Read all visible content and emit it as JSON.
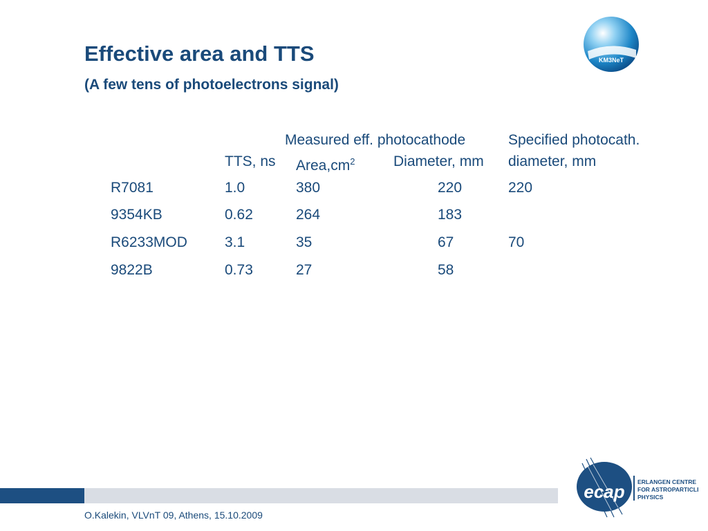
{
  "slide": {
    "title": "Effective area and TTS",
    "subtitle": "(A few tens of photoelectrons signal)"
  },
  "table": {
    "group_header_measured": "Measured eff. photocathode",
    "group_header_specified": "Specified photocath.",
    "col_tts": "TTS, ns",
    "col_area": "Area,cm",
    "col_area_sup": "2",
    "col_diameter": "Diameter, mm",
    "col_spec_diameter": "diameter, mm",
    "rows": [
      {
        "name": "R7081",
        "tts": "1.0",
        "area": "380",
        "diameter": "220",
        "spec": "220"
      },
      {
        "name": "9354KB",
        "tts": "0.62",
        "area": "264",
        "diameter": "183",
        "spec": ""
      },
      {
        "name": "R6233MOD",
        "tts": "3.1",
        "area": "35",
        "diameter": "67",
        "spec": "70"
      },
      {
        "name": "9822B",
        "tts": "0.73",
        "area": "27",
        "diameter": "58",
        "spec": ""
      }
    ]
  },
  "footer": {
    "text": "O.Kalekin, VLVnT 09, Athens, 15.10.2009"
  },
  "logos": {
    "km3net_text": "KM3NeT",
    "ecap_mark": "ecap",
    "ecap_line1": "ERLANGEN CENTRE",
    "ecap_line2": "FOR ASTROPARTICLE",
    "ecap_line3": "PHYSICS"
  },
  "colors": {
    "text": "#1a4a7a",
    "footer_dark": "#1d4f82",
    "footer_light": "#d9dde4"
  }
}
